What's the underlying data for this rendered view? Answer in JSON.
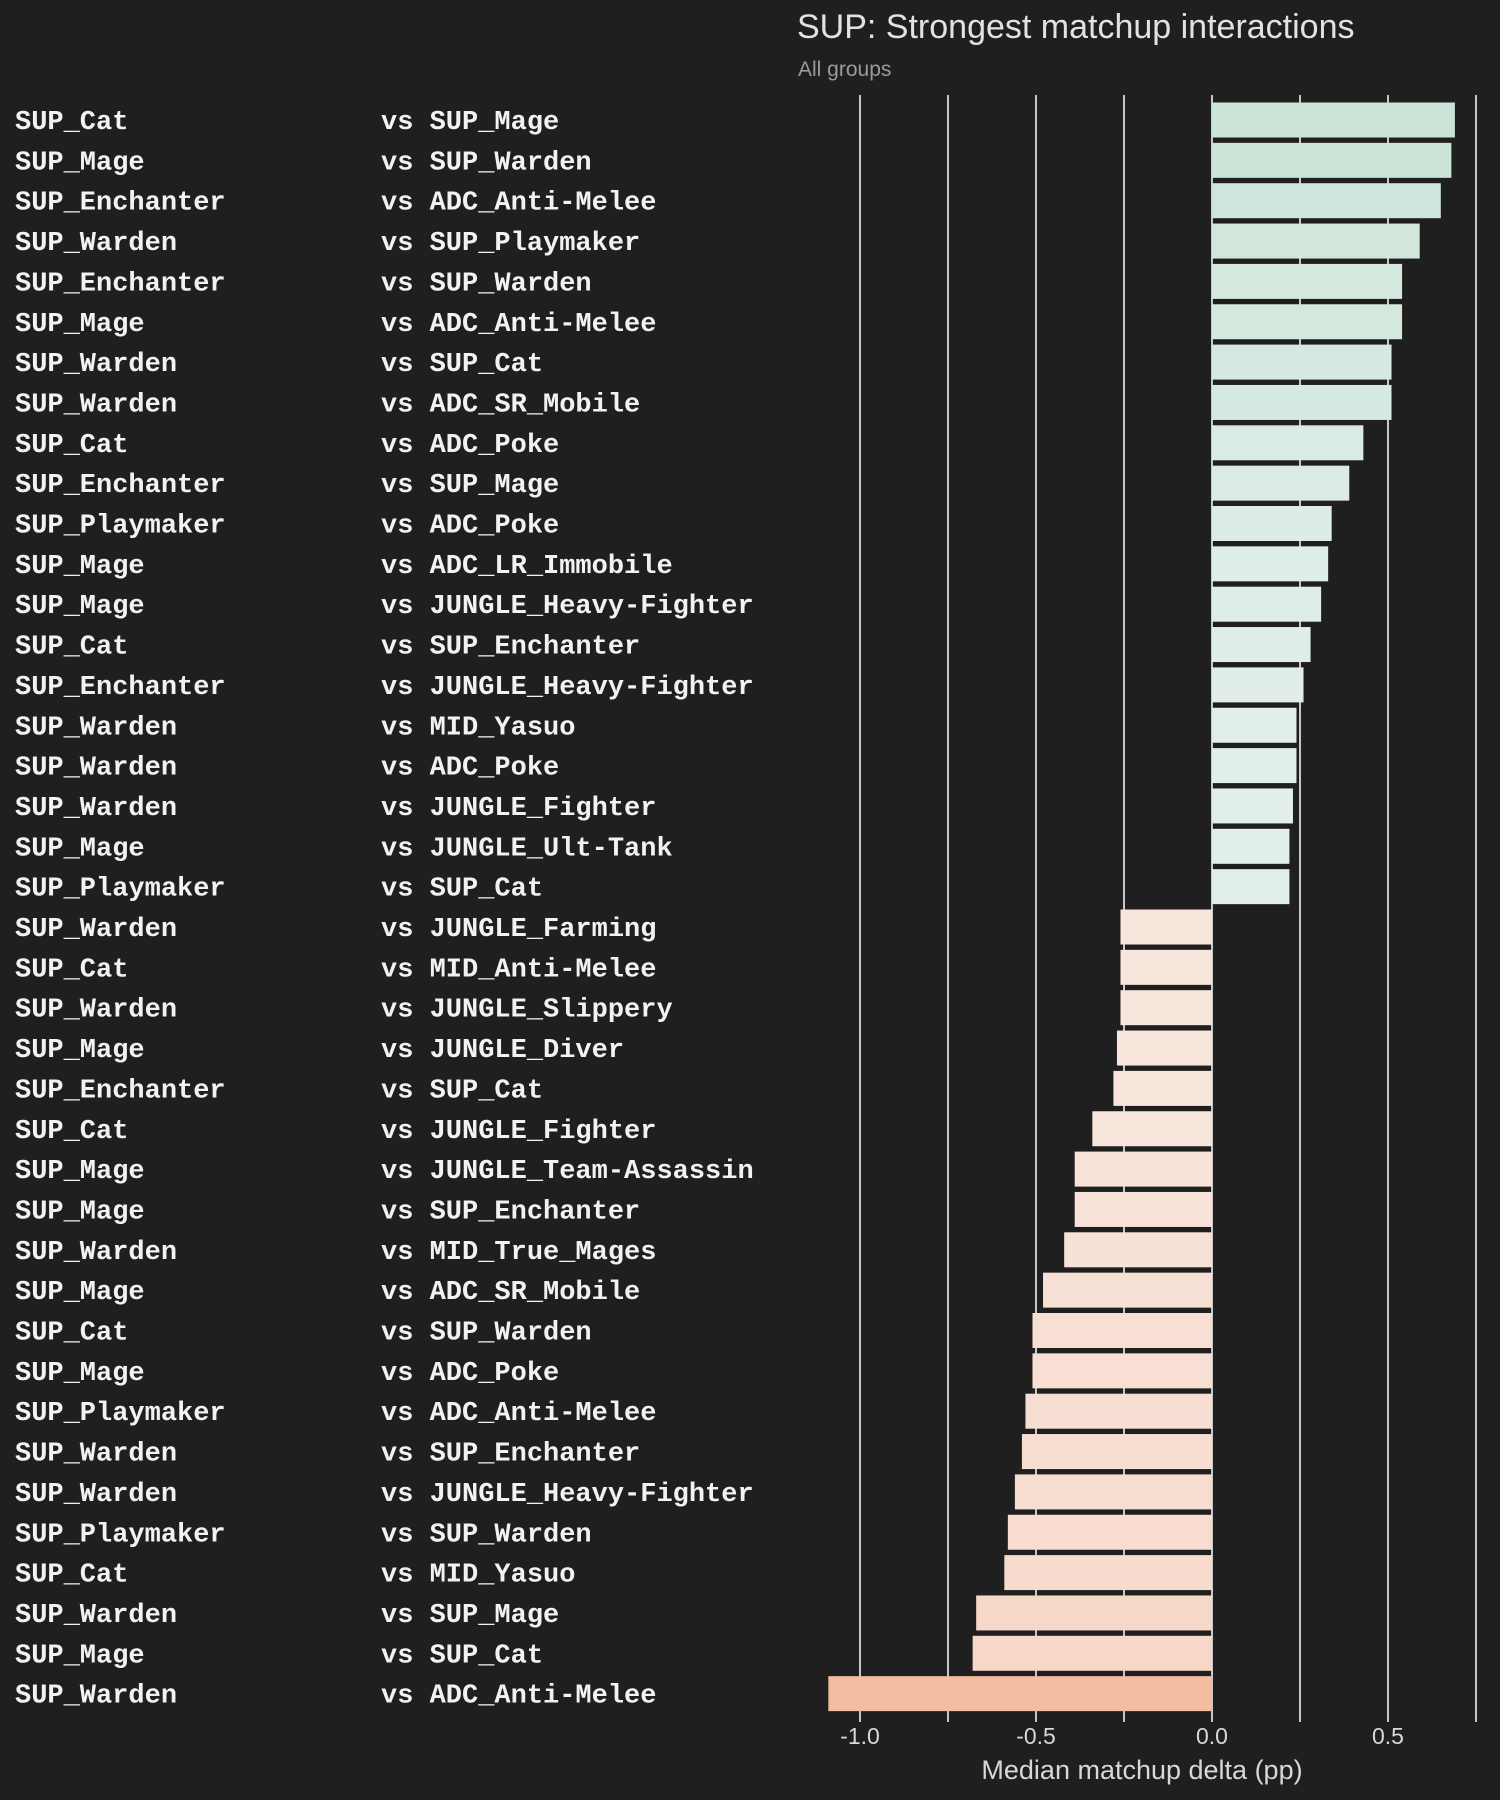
{
  "colors": {
    "background": "#1f1f1f",
    "text": "#f2f2f2",
    "muted_text": "#9a9a9a",
    "grid": "#f2f2f2",
    "positive_light": "#e7f1ed",
    "positive_dark": "#cbe4d8",
    "negative_light": "#f8e9e1",
    "negative_dark": "#f4bca0"
  },
  "chart_data": {
    "type": "bar",
    "orientation": "horizontal",
    "title": "SUP: Strongest matchup interactions",
    "subtitle": "All groups",
    "xlabel": "Median matchup delta (pp)",
    "ylabel": "",
    "xlim": [
      -1.2,
      0.75
    ],
    "xticks": [
      -1.0,
      -0.5,
      0.0,
      0.5
    ],
    "xtick_labels": [
      "-1.0",
      "-0.5",
      "0.0",
      "0.5"
    ],
    "minor_grid": [
      -0.75,
      -0.25,
      0.25,
      0.75
    ],
    "grid": true,
    "legend": "none",
    "rows": [
      {
        "left": "SUP_Cat",
        "right": "vs SUP_Mage",
        "value": 0.69
      },
      {
        "left": "SUP_Mage",
        "right": "vs SUP_Warden",
        "value": 0.68
      },
      {
        "left": "SUP_Enchanter",
        "right": "vs ADC_Anti-Melee",
        "value": 0.65
      },
      {
        "left": "SUP_Warden",
        "right": "vs SUP_Playmaker",
        "value": 0.59
      },
      {
        "left": "SUP_Enchanter",
        "right": "vs SUP_Warden",
        "value": 0.54
      },
      {
        "left": "SUP_Mage",
        "right": "vs ADC_Anti-Melee",
        "value": 0.54
      },
      {
        "left": "SUP_Warden",
        "right": "vs SUP_Cat",
        "value": 0.51
      },
      {
        "left": "SUP_Warden",
        "right": "vs ADC_SR_Mobile",
        "value": 0.51
      },
      {
        "left": "SUP_Cat",
        "right": "vs ADC_Poke",
        "value": 0.43
      },
      {
        "left": "SUP_Enchanter",
        "right": "vs SUP_Mage",
        "value": 0.39
      },
      {
        "left": "SUP_Playmaker",
        "right": "vs ADC_Poke",
        "value": 0.34
      },
      {
        "left": "SUP_Mage",
        "right": "vs ADC_LR_Immobile",
        "value": 0.33
      },
      {
        "left": "SUP_Mage",
        "right": "vs JUNGLE_Heavy-Fighter",
        "value": 0.31
      },
      {
        "left": "SUP_Cat",
        "right": "vs SUP_Enchanter",
        "value": 0.28
      },
      {
        "left": "SUP_Enchanter",
        "right": "vs JUNGLE_Heavy-Fighter",
        "value": 0.26
      },
      {
        "left": "SUP_Warden",
        "right": "vs MID_Yasuo",
        "value": 0.24
      },
      {
        "left": "SUP_Warden",
        "right": "vs ADC_Poke",
        "value": 0.24
      },
      {
        "left": "SUP_Warden",
        "right": "vs JUNGLE_Fighter",
        "value": 0.23
      },
      {
        "left": "SUP_Mage",
        "right": "vs JUNGLE_Ult-Tank",
        "value": 0.22
      },
      {
        "left": "SUP_Playmaker",
        "right": "vs SUP_Cat",
        "value": 0.22
      },
      {
        "left": "SUP_Warden",
        "right": "vs JUNGLE_Farming",
        "value": -0.26
      },
      {
        "left": "SUP_Cat",
        "right": "vs MID_Anti-Melee",
        "value": -0.26
      },
      {
        "left": "SUP_Warden",
        "right": "vs JUNGLE_Slippery",
        "value": -0.26
      },
      {
        "left": "SUP_Mage",
        "right": "vs JUNGLE_Diver",
        "value": -0.27
      },
      {
        "left": "SUP_Enchanter",
        "right": "vs SUP_Cat",
        "value": -0.28
      },
      {
        "left": "SUP_Cat",
        "right": "vs JUNGLE_Fighter",
        "value": -0.34
      },
      {
        "left": "SUP_Mage",
        "right": "vs JUNGLE_Team-Assassin",
        "value": -0.39
      },
      {
        "left": "SUP_Mage",
        "right": "vs SUP_Enchanter",
        "value": -0.39
      },
      {
        "left": "SUP_Warden",
        "right": "vs MID_True_Mages",
        "value": -0.42
      },
      {
        "left": "SUP_Mage",
        "right": "vs ADC_SR_Mobile",
        "value": -0.48
      },
      {
        "left": "SUP_Cat",
        "right": "vs SUP_Warden",
        "value": -0.51
      },
      {
        "left": "SUP_Mage",
        "right": "vs ADC_Poke",
        "value": -0.51
      },
      {
        "left": "SUP_Playmaker",
        "right": "vs ADC_Anti-Melee",
        "value": -0.53
      },
      {
        "left": "SUP_Warden",
        "right": "vs SUP_Enchanter",
        "value": -0.54
      },
      {
        "left": "SUP_Warden",
        "right": "vs JUNGLE_Heavy-Fighter",
        "value": -0.56
      },
      {
        "left": "SUP_Playmaker",
        "right": "vs SUP_Warden",
        "value": -0.58
      },
      {
        "left": "SUP_Cat",
        "right": "vs MID_Yasuo",
        "value": -0.59
      },
      {
        "left": "SUP_Warden",
        "right": "vs SUP_Mage",
        "value": -0.67
      },
      {
        "left": "SUP_Mage",
        "right": "vs SUP_Cat",
        "value": -0.68
      },
      {
        "left": "SUP_Warden",
        "right": "vs ADC_Anti-Melee",
        "value": -1.09
      }
    ]
  }
}
